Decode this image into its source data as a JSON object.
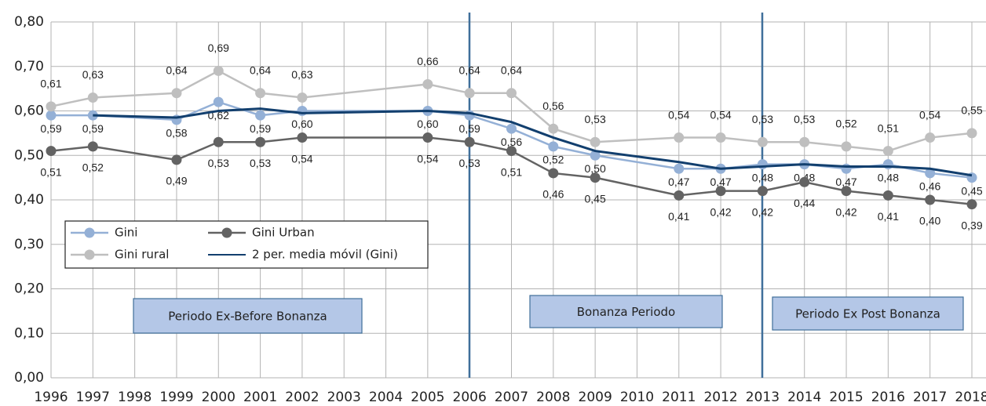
{
  "chart_data": {
    "type": "line",
    "categories": [
      "1996",
      "1997",
      "1998",
      "1999",
      "2000",
      "2001",
      "2002",
      "2003",
      "2004",
      "2005",
      "2006",
      "2007",
      "2008",
      "2009",
      "2010",
      "2011",
      "2012",
      "2013",
      "2014",
      "2015",
      "2016",
      "2017",
      "2018"
    ],
    "ylim": [
      0,
      0.8
    ],
    "yticks": [
      {
        "value": 0,
        "label": "0,00"
      },
      {
        "value": 0.1,
        "label": "0,10"
      },
      {
        "value": 0.2,
        "label": "0,20"
      },
      {
        "value": 0.3,
        "label": "0,30"
      },
      {
        "value": 0.4,
        "label": "0,40"
      },
      {
        "value": 0.5,
        "label": "0,50"
      },
      {
        "value": 0.6,
        "label": "0,60"
      },
      {
        "value": 0.7,
        "label": "0,70"
      },
      {
        "value": 0.8,
        "label": "0,80"
      }
    ],
    "grid": true,
    "legend": "left",
    "series": [
      {
        "name": "Gini",
        "color": "#94b0d6",
        "marker": true,
        "x": [
          "1996",
          "1997",
          "1999",
          "2000",
          "2001",
          "2002",
          "2005",
          "2006",
          "2007",
          "2008",
          "2009",
          "2011",
          "2012",
          "2013",
          "2014",
          "2015",
          "2016",
          "2017",
          "2018"
        ],
        "values": [
          0.59,
          0.59,
          0.58,
          0.62,
          0.59,
          0.6,
          0.6,
          0.59,
          0.56,
          0.52,
          0.5,
          0.47,
          0.47,
          0.48,
          0.48,
          0.47,
          0.48,
          0.46,
          0.45
        ],
        "value_labels": [
          "0,59",
          "0,59",
          "0,58",
          "0,62",
          "0,59",
          "0,60",
          "0,60",
          "0,59",
          "0,56",
          "0,52",
          "0,50",
          "0,47",
          "0,47",
          "0,48",
          "0,48",
          "0,47",
          "0,48",
          "0,46",
          "0,45"
        ]
      },
      {
        "name": "Gini Urban",
        "color": "#636363",
        "marker": true,
        "x": [
          "1996",
          "1997",
          "1999",
          "2000",
          "2001",
          "2002",
          "2005",
          "2006",
          "2007",
          "2008",
          "2009",
          "2011",
          "2012",
          "2013",
          "2014",
          "2015",
          "2016",
          "2017",
          "2018"
        ],
        "values": [
          0.51,
          0.52,
          0.49,
          0.53,
          0.53,
          0.54,
          0.54,
          0.53,
          0.51,
          0.46,
          0.45,
          0.41,
          0.42,
          0.42,
          0.44,
          0.42,
          0.41,
          0.4,
          0.39
        ],
        "value_labels": [
          "0,51",
          "0,52",
          "0,49",
          "0,53",
          "0,53",
          "0,54",
          "0,54",
          "0,53",
          "0,51",
          "0,46",
          "0,45",
          "0,41",
          "0,42",
          "0,42",
          "0,44",
          "0,42",
          "0,41",
          "0,40",
          "0,39"
        ]
      },
      {
        "name": "Gini rural",
        "color": "#bfbfbf",
        "marker": true,
        "x": [
          "1996",
          "1997",
          "1999",
          "2000",
          "2001",
          "2002",
          "2005",
          "2006",
          "2007",
          "2008",
          "2009",
          "2011",
          "2012",
          "2013",
          "2014",
          "2015",
          "2016",
          "2017",
          "2018"
        ],
        "values": [
          0.61,
          0.63,
          0.64,
          0.69,
          0.64,
          0.63,
          0.66,
          0.64,
          0.64,
          0.56,
          0.53,
          0.54,
          0.54,
          0.53,
          0.53,
          0.52,
          0.51,
          0.54,
          0.55
        ],
        "value_labels": [
          "0,61",
          "0,63",
          "0,64",
          "0,69",
          "0,64",
          "0,63",
          "0,66",
          "0,64",
          "0,64",
          "0,56",
          "0,53",
          "0,54",
          "0,54",
          "0,53",
          "0,53",
          "0,52",
          "0,51",
          "0,54",
          "0,55"
        ]
      },
      {
        "name": "2 per. media móvil (Gini)",
        "color": "#123f6e",
        "marker": false,
        "x": [
          "1997",
          "1999",
          "2000",
          "2001",
          "2002",
          "2005",
          "2006",
          "2007",
          "2008",
          "2009",
          "2011",
          "2012",
          "2013",
          "2014",
          "2015",
          "2016",
          "2017",
          "2018"
        ],
        "values": [
          0.59,
          0.585,
          0.6,
          0.605,
          0.595,
          0.6,
          0.595,
          0.575,
          0.54,
          0.51,
          0.485,
          0.47,
          0.475,
          0.48,
          0.475,
          0.475,
          0.47,
          0.455
        ]
      }
    ],
    "annotations": [
      "Periodo Ex-Before Bonanza",
      "Bonanza Periodo",
      "Periodo Ex Post Bonanza"
    ]
  }
}
